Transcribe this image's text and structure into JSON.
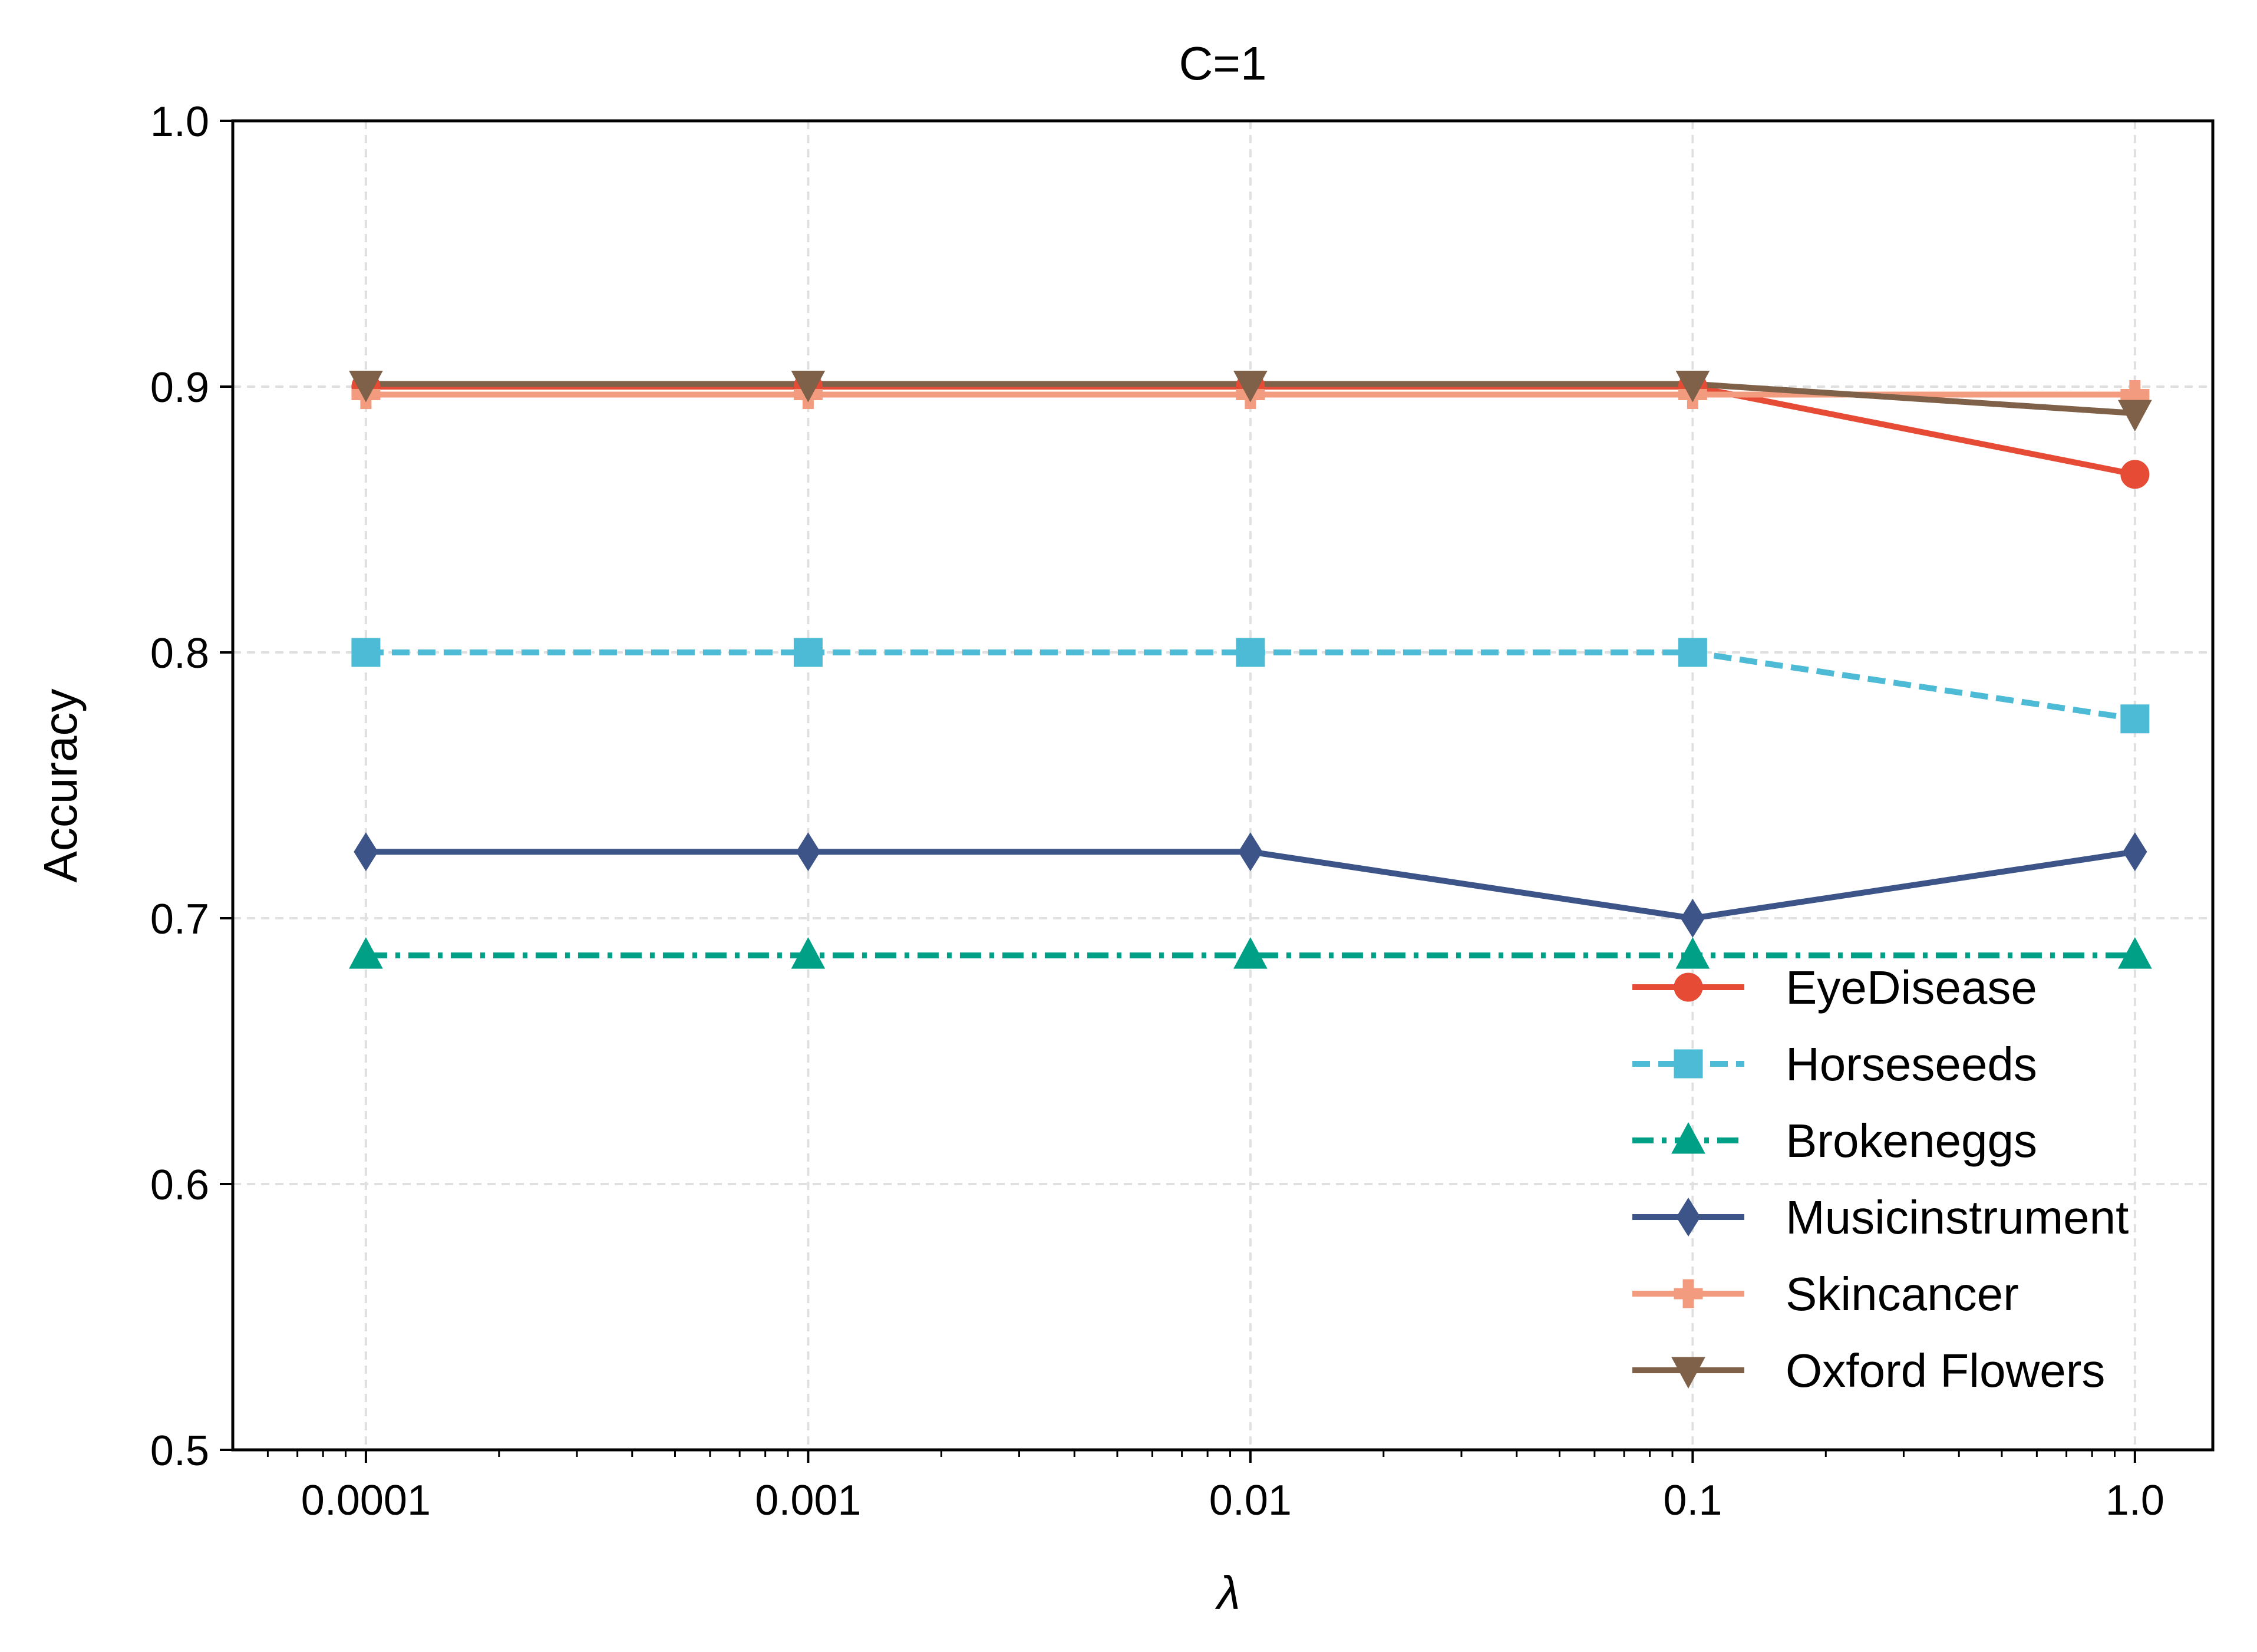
{
  "chart_data": {
    "type": "line",
    "title": "C=1",
    "xlabel": "λ",
    "ylabel": "Accuracy",
    "xscale": "log",
    "x": [
      0.0001,
      0.001,
      0.01,
      0.1,
      1.0
    ],
    "xtick_labels": [
      "0.0001",
      "0.001",
      "0.01",
      "0.1",
      "1.0"
    ],
    "ylim": [
      0.5,
      1.0
    ],
    "yticks": [
      0.5,
      0.6,
      0.7,
      0.8,
      0.9,
      1.0
    ],
    "ytick_labels": [
      "0.5",
      "0.6",
      "0.7",
      "0.8",
      "0.9",
      "1.0"
    ],
    "grid": true,
    "legend_position": "lower-right",
    "series": [
      {
        "name": "EyeDisease",
        "values": [
          0.9,
          0.9,
          0.9,
          0.9,
          0.867
        ],
        "color": "#e64b35",
        "marker": "circle",
        "dash": "solid"
      },
      {
        "name": "Horseseeds",
        "values": [
          0.8,
          0.8,
          0.8,
          0.8,
          0.775
        ],
        "color": "#4dbbd5",
        "marker": "square",
        "dash": "dashed"
      },
      {
        "name": "Brokeneggs",
        "values": [
          0.686,
          0.686,
          0.686,
          0.686,
          0.686
        ],
        "color": "#00a087",
        "marker": "triangle-up",
        "dash": "dashdot"
      },
      {
        "name": "Musicinstrument",
        "values": [
          0.725,
          0.725,
          0.725,
          0.7,
          0.725
        ],
        "color": "#3c5488",
        "marker": "diamond",
        "dash": "solid"
      },
      {
        "name": "Skincancer",
        "values": [
          0.897,
          0.897,
          0.897,
          0.897,
          0.897
        ],
        "color": "#f39b7f",
        "marker": "plus",
        "dash": "solid"
      },
      {
        "name": "Oxford Flowers",
        "values": [
          0.901,
          0.901,
          0.901,
          0.901,
          0.89
        ],
        "color": "#7e6148",
        "marker": "triangle-down",
        "dash": "solid"
      }
    ]
  }
}
